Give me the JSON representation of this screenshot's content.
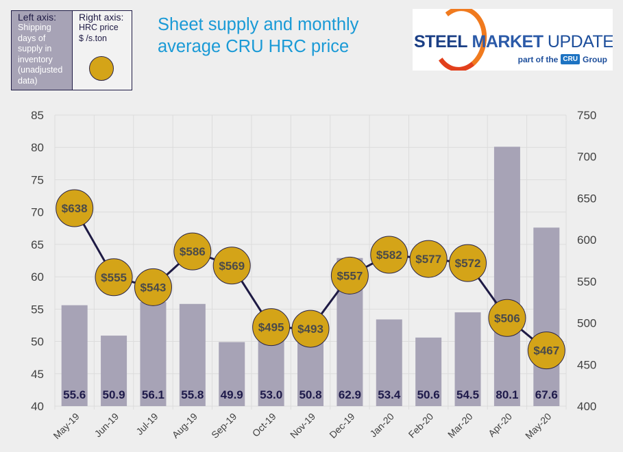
{
  "title": "Sheet supply and monthly average CRU HRC price",
  "title_lines": [
    "Sheet supply and monthly",
    "average CRU HRC price"
  ],
  "legend": {
    "left_header": "Left axis:",
    "left_body": [
      "Shipping",
      "days of",
      "supply in",
      "inventory",
      "(unadjusted",
      "data)"
    ],
    "right_header": "Right axis:",
    "right_body": [
      "HRC  price",
      "$ /s.ton"
    ]
  },
  "logo": {
    "word1": "STEEL",
    "word2": "MARKET",
    "word3": "UPDATE",
    "sub_prefix": "part of the",
    "badge": "CRU",
    "sub_suffix": "Group"
  },
  "colors": {
    "bar": "#a7a3b6",
    "bar_label": "#1e1a4a",
    "price_marker": "#d4a418",
    "price_line": "#1e1a44",
    "title": "#1a9ad6"
  },
  "chart_data": {
    "type": "bar",
    "title": "Sheet supply and monthly average CRU HRC price",
    "categories": [
      "May-19",
      "Jun-19",
      "Jul-19",
      "Aug-19",
      "Sep-19",
      "Oct-19",
      "Nov-19",
      "Dec-19",
      "Jan-20",
      "Feb-20",
      "Mar-20",
      "Apr-20",
      "May-20"
    ],
    "series": [
      {
        "name": "Shipping days of supply in inventory (unadjusted data)",
        "type": "bar",
        "axis": "left",
        "values": [
          55.6,
          50.9,
          56.1,
          55.8,
          49.9,
          53.0,
          50.8,
          62.9,
          53.4,
          50.6,
          54.5,
          80.1,
          67.6
        ],
        "labels": [
          "55.6",
          "50.9",
          "56.1",
          "55.8",
          "49.9",
          "53.0",
          "50.8",
          "62.9",
          "53.4",
          "50.6",
          "54.5",
          "80.1",
          "67.6"
        ]
      },
      {
        "name": "HRC price $/s.ton",
        "type": "line",
        "axis": "right",
        "values": [
          638,
          555,
          543,
          586,
          569,
          495,
          493,
          557,
          582,
          577,
          572,
          506,
          467
        ],
        "labels": [
          "$638",
          "$555",
          "$543",
          "$586",
          "$569",
          "$495",
          "$493",
          "$557",
          "$582",
          "$577",
          "$572",
          "$506",
          "$467"
        ]
      }
    ],
    "left_axis": {
      "label": "Shipping days of supply in inventory",
      "ylim": [
        40,
        85
      ],
      "ticks": [
        "40",
        "45",
        "50",
        "55",
        "60",
        "65",
        "70",
        "75",
        "80",
        "85"
      ]
    },
    "right_axis": {
      "label": "HRC price $/s.ton",
      "ylim": [
        400,
        750
      ],
      "ticks": [
        "400",
        "450",
        "500",
        "550",
        "600",
        "650",
        "700",
        "750"
      ]
    },
    "grid": true,
    "legend_position": "top-left"
  }
}
